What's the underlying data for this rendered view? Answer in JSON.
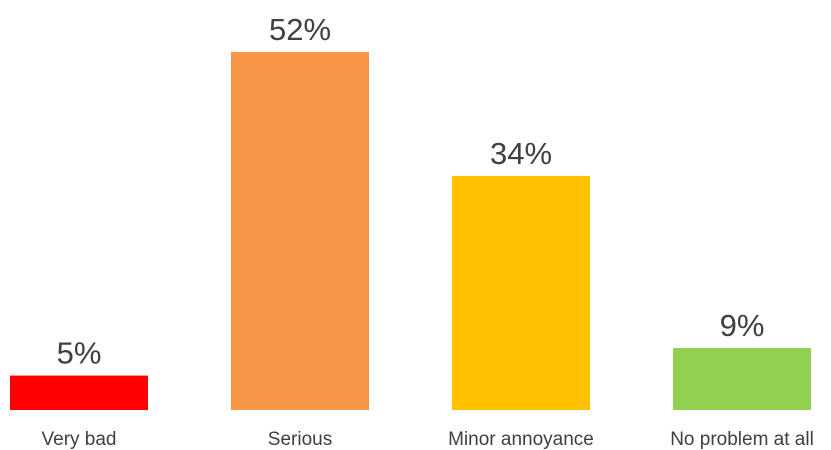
{
  "chart_data": {
    "type": "bar",
    "categories": [
      "Very bad",
      "Serious",
      "Minor annoyance",
      "No problem at all"
    ],
    "values": [
      5,
      52,
      34,
      9
    ],
    "data_labels": [
      "5%",
      "52%",
      "34%",
      "9%"
    ],
    "colors": [
      "#ff0000",
      "#f79646",
      "#ffc000",
      "#92d050"
    ],
    "ylim": [
      0,
      52
    ],
    "grid": false,
    "legend": "none"
  }
}
